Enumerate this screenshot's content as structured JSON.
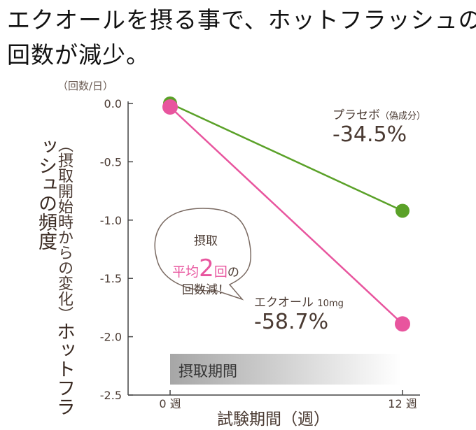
{
  "title": {
    "line1": "エクオールを摂る事で、ホットフラッシュの",
    "line2": "回数が減少。"
  },
  "chart_data": {
    "type": "line",
    "x": [
      "0 週",
      "12 週"
    ],
    "series": [
      {
        "name": "プラセボ",
        "name_note": "（偽成分）",
        "values": [
          0.0,
          -0.92
        ],
        "color": "#5aa128",
        "change_label": "-34.5%"
      },
      {
        "name": "エクオール",
        "name_note": "10mg",
        "values": [
          -0.03,
          -1.89
        ],
        "color": "#e8559e",
        "change_label": "-58.7%"
      }
    ],
    "ylim": [
      -2.5,
      0.0
    ],
    "yticks": [
      0.0,
      -0.5,
      -1.0,
      -1.5,
      -2.0,
      -2.5
    ],
    "ytick_labels": [
      "0.0",
      "-0.5",
      "-1.0",
      "-1.5",
      "-2.0",
      "-2.5"
    ],
    "ylabel": "ホットフラッシュの頻度",
    "ylabel_sub": "（摂取開始時からの変化）",
    "y_unit": "（回数/日）",
    "xlabel": "試験期間（週）",
    "grid": false
  },
  "callout": {
    "line1": "摂取",
    "line2_a": "平均",
    "line2_num": "2",
    "line2_b": "回",
    "line2_c": "の",
    "line3": "回数減！"
  },
  "period_label": "摂取期間",
  "colors": {
    "placebo": "#5aa128",
    "equol": "#e8559e",
    "text": "#4a3a32"
  }
}
